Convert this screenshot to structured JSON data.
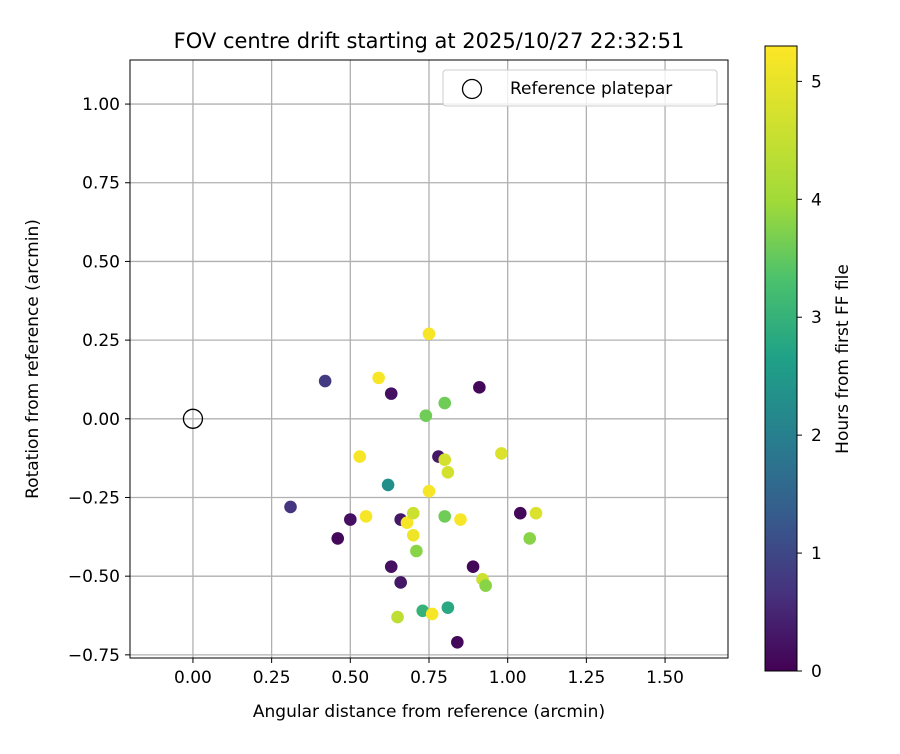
{
  "chart_data": {
    "type": "scatter",
    "title": "FOV centre drift starting at 2025/10/27 22:32:51",
    "xlabel": "Angular distance from reference (arcmin)",
    "ylabel": "Rotation from reference (arcmin)",
    "xlim": [
      -0.2,
      1.7
    ],
    "ylim": [
      -0.76,
      1.14
    ],
    "xticks": [
      0.0,
      0.25,
      0.5,
      0.75,
      1.0,
      1.25,
      1.5
    ],
    "xtick_labels": [
      "0.00",
      "0.25",
      "0.50",
      "0.75",
      "1.00",
      "1.25",
      "1.50"
    ],
    "yticks": [
      -0.75,
      -0.5,
      -0.25,
      0.0,
      0.25,
      0.5,
      0.75,
      1.0
    ],
    "ytick_labels": [
      "−0.75",
      "−0.50",
      "−0.25",
      "0.00",
      "0.25",
      "0.50",
      "0.75",
      "1.00"
    ],
    "grid": true,
    "legend": {
      "position": "top-right",
      "entries": [
        "Reference platepar"
      ]
    },
    "reference_point": {
      "x": 0.0,
      "y": 0.0
    },
    "colorbar": {
      "label": "Hours from first FF file",
      "range": [
        0,
        5.3
      ],
      "ticks": [
        0,
        1,
        2,
        3,
        4,
        5
      ],
      "tick_labels": [
        "0",
        "1",
        "2",
        "3",
        "4",
        "5"
      ],
      "colormap": "viridis"
    },
    "points": [
      {
        "x": 0.42,
        "y": 0.12,
        "h": 0.8
      },
      {
        "x": 0.31,
        "y": -0.28,
        "h": 0.7
      },
      {
        "x": 0.5,
        "y": -0.32,
        "h": 0.2
      },
      {
        "x": 0.46,
        "y": -0.38,
        "h": 0.1
      },
      {
        "x": 0.63,
        "y": 0.08,
        "h": 0.2
      },
      {
        "x": 0.59,
        "y": 0.13,
        "h": 5.2
      },
      {
        "x": 0.53,
        "y": -0.12,
        "h": 5.2
      },
      {
        "x": 0.55,
        "y": -0.31,
        "h": 5.2
      },
      {
        "x": 0.62,
        "y": -0.21,
        "h": 2.3
      },
      {
        "x": 0.63,
        "y": -0.47,
        "h": 0.2
      },
      {
        "x": 0.66,
        "y": -0.32,
        "h": 0.3
      },
      {
        "x": 0.66,
        "y": -0.52,
        "h": 0.3
      },
      {
        "x": 0.65,
        "y": -0.63,
        "h": 4.4
      },
      {
        "x": 0.68,
        "y": -0.33,
        "h": 5.2
      },
      {
        "x": 0.7,
        "y": -0.3,
        "h": 4.6
      },
      {
        "x": 0.7,
        "y": -0.37,
        "h": 5.1
      },
      {
        "x": 0.71,
        "y": -0.42,
        "h": 3.8
      },
      {
        "x": 0.73,
        "y": -0.61,
        "h": 3.0
      },
      {
        "x": 0.74,
        "y": 0.01,
        "h": 3.6
      },
      {
        "x": 0.75,
        "y": 0.27,
        "h": 5.2
      },
      {
        "x": 0.75,
        "y": -0.23,
        "h": 5.2
      },
      {
        "x": 0.76,
        "y": -0.62,
        "h": 5.2
      },
      {
        "x": 0.78,
        "y": -0.12,
        "h": 0.3
      },
      {
        "x": 0.8,
        "y": 0.05,
        "h": 3.6
      },
      {
        "x": 0.8,
        "y": -0.13,
        "h": 4.7
      },
      {
        "x": 0.81,
        "y": -0.17,
        "h": 4.7
      },
      {
        "x": 0.8,
        "y": -0.31,
        "h": 3.6
      },
      {
        "x": 0.81,
        "y": -0.6,
        "h": 2.8
      },
      {
        "x": 0.84,
        "y": -0.71,
        "h": 0.1
      },
      {
        "x": 0.85,
        "y": -0.32,
        "h": 5.2
      },
      {
        "x": 0.89,
        "y": -0.47,
        "h": 0.1
      },
      {
        "x": 0.91,
        "y": 0.1,
        "h": 0.1
      },
      {
        "x": 0.92,
        "y": -0.51,
        "h": 4.6
      },
      {
        "x": 0.93,
        "y": -0.53,
        "h": 3.8
      },
      {
        "x": 0.98,
        "y": -0.11,
        "h": 4.8
      },
      {
        "x": 1.04,
        "y": -0.3,
        "h": 0.1
      },
      {
        "x": 1.07,
        "y": -0.38,
        "h": 3.8
      },
      {
        "x": 1.09,
        "y": -0.3,
        "h": 4.8
      }
    ]
  }
}
